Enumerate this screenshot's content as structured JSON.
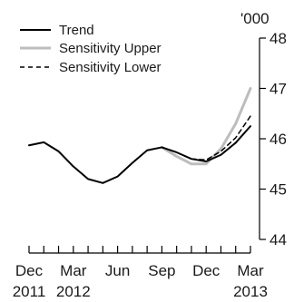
{
  "chart_data": {
    "type": "line",
    "unit_label": "'000",
    "x_tick_labels": [
      "Dec",
      "Mar",
      "Jun",
      "Sep",
      "Dec",
      "Mar"
    ],
    "year_labels": [
      "2011",
      "2012",
      "2013"
    ],
    "y_ticks": [
      44,
      45,
      46,
      47,
      48
    ],
    "ylim": [
      44,
      48
    ],
    "grid": false,
    "legend_position": "top-left",
    "x_months": [
      "2011-12",
      "2012-01",
      "2012-02",
      "2012-03",
      "2012-04",
      "2012-05",
      "2012-06",
      "2012-07",
      "2012-08",
      "2012-09",
      "2012-10",
      "2012-11",
      "2012-12",
      "2013-01",
      "2013-02",
      "2013-03"
    ],
    "series": [
      {
        "name": "Trend",
        "color": "#000000",
        "style": "solid",
        "values": [
          45.87,
          45.93,
          45.75,
          45.45,
          45.2,
          45.12,
          45.25,
          45.52,
          45.77,
          45.83,
          45.73,
          45.6,
          45.55,
          45.68,
          45.92,
          46.25
        ]
      },
      {
        "name": "Sensitivity Upper",
        "color": "#bdbdbd",
        "style": "solid",
        "values": [
          null,
          null,
          null,
          null,
          null,
          null,
          null,
          null,
          null,
          45.83,
          45.65,
          45.5,
          45.5,
          45.8,
          46.3,
          47.0
        ]
      },
      {
        "name": "Sensitivity Lower",
        "color": "#000000",
        "style": "dashed",
        "values": [
          null,
          null,
          null,
          null,
          null,
          null,
          null,
          null,
          null,
          null,
          null,
          45.6,
          45.58,
          45.75,
          46.02,
          46.45
        ]
      }
    ]
  }
}
